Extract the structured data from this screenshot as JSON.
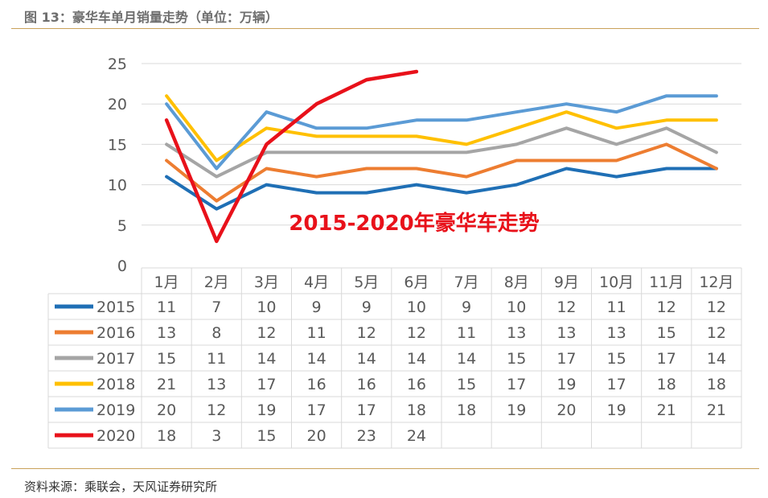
{
  "figure_title": "图 13：豪华车单月销量走势（单位：万辆）",
  "source": "资料来源：乘联会，天风证券研究所",
  "chart_data": {
    "type": "line",
    "annotation": "2015-2020年豪华车走势",
    "categories": [
      "1月",
      "2月",
      "3月",
      "4月",
      "5月",
      "6月",
      "7月",
      "8月",
      "9月",
      "10月",
      "11月",
      "12月"
    ],
    "y_ticks": [
      "0",
      "5",
      "10",
      "15",
      "20",
      "25"
    ],
    "ylim": [
      0,
      25
    ],
    "grid": true,
    "legend": "data-table",
    "series": [
      {
        "name": "2015",
        "color": "#1f6fb5",
        "values": [
          11,
          7,
          10,
          9,
          9,
          10,
          9,
          10,
          12,
          11,
          12,
          12
        ]
      },
      {
        "name": "2016",
        "color": "#ed7d31",
        "values": [
          13,
          8,
          12,
          11,
          12,
          12,
          11,
          13,
          13,
          13,
          15,
          12
        ]
      },
      {
        "name": "2017",
        "color": "#a5a5a5",
        "values": [
          15,
          11,
          14,
          14,
          14,
          14,
          14,
          15,
          17,
          15,
          17,
          14
        ]
      },
      {
        "name": "2018",
        "color": "#ffc000",
        "values": [
          21,
          13,
          17,
          16,
          16,
          16,
          15,
          17,
          19,
          17,
          18,
          18
        ]
      },
      {
        "name": "2019",
        "color": "#5b9bd5",
        "values": [
          20,
          12,
          19,
          17,
          17,
          18,
          18,
          19,
          20,
          19,
          21,
          21
        ]
      },
      {
        "name": "2020",
        "color": "#e8111a",
        "values": [
          18,
          3,
          15,
          20,
          23,
          24,
          null,
          null,
          null,
          null,
          null,
          null
        ]
      }
    ]
  }
}
